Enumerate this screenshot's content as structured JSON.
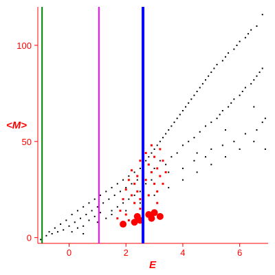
{
  "chart_data": {
    "type": "scatter",
    "xlabel": "E",
    "ylabel": "<M>",
    "xlim": [
      -1.1,
      7.0
    ],
    "ylim": [
      -3,
      120
    ],
    "x_ticks": [
      0,
      2,
      4,
      6
    ],
    "y_ticks": [
      0,
      50,
      100
    ],
    "x_tick_labels": [
      "0",
      "2",
      "4",
      "6"
    ],
    "y_tick_labels": [
      "0",
      "50",
      "100"
    ],
    "grid": false,
    "colors": {
      "background_points": "#000000",
      "highlight_points": "#ff0000",
      "line_green": "#008000",
      "line_magenta": "#ff00ff",
      "line_blue": "#0000ff",
      "axis": "#ff0000",
      "tick_labels": "#ff0000"
    },
    "vertical_lines": [
      {
        "x": -0.95,
        "color": "#008000"
      },
      {
        "x": 1.05,
        "color": "#ff00ff"
      },
      {
        "x": 2.6,
        "color": "#0000ff"
      }
    ],
    "series": [
      {
        "color": "#000000",
        "marker": "small-dot",
        "points": [
          [
            -1.0,
            -1
          ],
          [
            -0.8,
            1
          ],
          [
            -0.7,
            3
          ],
          [
            -0.6,
            2
          ],
          [
            -0.5,
            5
          ],
          [
            -0.4,
            3
          ],
          [
            -0.3,
            7
          ],
          [
            -0.2,
            4
          ],
          [
            -0.1,
            9
          ],
          [
            0.0,
            6
          ],
          [
            0.1,
            12
          ],
          [
            0.1,
            3
          ],
          [
            0.2,
            8
          ],
          [
            0.3,
            14
          ],
          [
            0.3,
            5
          ],
          [
            0.4,
            10
          ],
          [
            0.5,
            16
          ],
          [
            0.5,
            6
          ],
          [
            0.6,
            12
          ],
          [
            0.7,
            18
          ],
          [
            0.7,
            9
          ],
          [
            0.8,
            14
          ],
          [
            0.9,
            20
          ],
          [
            0.9,
            11
          ],
          [
            1.0,
            16
          ],
          [
            1.1,
            22
          ],
          [
            1.1,
            13
          ],
          [
            1.2,
            18
          ],
          [
            1.3,
            24
          ],
          [
            1.3,
            10
          ],
          [
            1.4,
            20
          ],
          [
            1.5,
            26
          ],
          [
            1.5,
            14
          ],
          [
            1.6,
            22
          ],
          [
            1.7,
            28
          ],
          [
            1.7,
            16
          ],
          [
            1.8,
            24
          ],
          [
            1.9,
            30
          ],
          [
            1.9,
            18
          ],
          [
            2.0,
            26
          ],
          [
            2.1,
            32
          ],
          [
            2.1,
            20
          ],
          [
            2.2,
            28
          ],
          [
            2.3,
            34
          ],
          [
            2.3,
            22
          ],
          [
            2.4,
            30
          ],
          [
            2.5,
            36
          ],
          [
            2.5,
            24
          ],
          [
            2.6,
            38
          ],
          [
            2.7,
            40
          ],
          [
            2.7,
            28
          ],
          [
            2.8,
            42
          ],
          [
            2.9,
            44
          ],
          [
            2.9,
            30
          ],
          [
            3.0,
            46
          ],
          [
            3.0,
            36
          ],
          [
            3.1,
            48
          ],
          [
            3.2,
            50
          ],
          [
            3.2,
            40
          ],
          [
            3.3,
            52
          ],
          [
            3.4,
            54
          ],
          [
            3.4,
            38
          ],
          [
            3.5,
            56
          ],
          [
            3.6,
            58
          ],
          [
            3.6,
            42
          ],
          [
            3.7,
            60
          ],
          [
            3.8,
            62
          ],
          [
            3.8,
            44
          ],
          [
            3.9,
            64
          ],
          [
            4.0,
            66
          ],
          [
            4.0,
            48
          ],
          [
            4.0,
            36
          ],
          [
            4.1,
            68
          ],
          [
            4.2,
            70
          ],
          [
            4.2,
            50
          ],
          [
            4.3,
            72
          ],
          [
            4.4,
            74
          ],
          [
            4.4,
            52
          ],
          [
            4.4,
            40
          ],
          [
            4.5,
            76
          ],
          [
            4.6,
            78
          ],
          [
            4.6,
            55
          ],
          [
            4.7,
            80
          ],
          [
            4.8,
            82
          ],
          [
            4.8,
            58
          ],
          [
            4.8,
            42
          ],
          [
            4.9,
            84
          ],
          [
            5.0,
            86
          ],
          [
            5.0,
            60
          ],
          [
            5.0,
            46
          ],
          [
            5.1,
            88
          ],
          [
            5.2,
            90
          ],
          [
            5.2,
            62
          ],
          [
            5.3,
            64
          ],
          [
            5.4,
            92
          ],
          [
            5.4,
            66
          ],
          [
            5.4,
            48
          ],
          [
            5.5,
            94
          ],
          [
            5.6,
            96
          ],
          [
            5.6,
            68
          ],
          [
            5.7,
            70
          ],
          [
            5.8,
            98
          ],
          [
            5.8,
            72
          ],
          [
            5.8,
            50
          ],
          [
            5.9,
            100
          ],
          [
            6.0,
            102
          ],
          [
            6.0,
            74
          ],
          [
            6.1,
            76
          ],
          [
            6.2,
            104
          ],
          [
            6.2,
            78
          ],
          [
            6.2,
            54
          ],
          [
            6.3,
            106
          ],
          [
            6.4,
            108
          ],
          [
            6.4,
            80
          ],
          [
            6.5,
            82
          ],
          [
            6.6,
            110
          ],
          [
            6.6,
            84
          ],
          [
            6.6,
            56
          ],
          [
            6.7,
            86
          ],
          [
            6.8,
            116
          ],
          [
            6.8,
            88
          ],
          [
            6.8,
            60
          ],
          [
            6.9,
            62
          ],
          [
            6.9,
            46
          ],
          [
            3.0,
            22
          ],
          [
            3.5,
            26
          ],
          [
            4.0,
            30
          ],
          [
            4.5,
            34
          ],
          [
            5.0,
            38
          ],
          [
            5.5,
            42
          ],
          [
            6.0,
            46
          ],
          [
            6.5,
            50
          ],
          [
            3.5,
            34
          ],
          [
            4.5,
            44
          ],
          [
            5.5,
            56
          ],
          [
            6.5,
            68
          ],
          [
            2.0,
            14
          ],
          [
            1.0,
            8
          ],
          [
            0.5,
            2
          ],
          [
            1.5,
            12
          ],
          [
            2.5,
            18
          ]
        ]
      },
      {
        "color": "#ff0000",
        "marker": "dot",
        "points": [
          [
            1.7,
            10
          ],
          [
            1.8,
            14
          ],
          [
            1.9,
            20
          ],
          [
            2.0,
            25
          ],
          [
            2.1,
            30
          ],
          [
            2.2,
            35
          ],
          [
            2.2,
            22
          ],
          [
            2.3,
            28
          ],
          [
            2.3,
            18
          ],
          [
            2.4,
            32
          ],
          [
            2.4,
            24
          ],
          [
            2.5,
            40
          ],
          [
            2.5,
            20
          ],
          [
            2.6,
            36
          ],
          [
            2.6,
            26
          ],
          [
            2.7,
            44
          ],
          [
            2.7,
            30
          ],
          [
            2.8,
            38
          ],
          [
            2.8,
            22
          ],
          [
            2.9,
            48
          ],
          [
            2.9,
            34
          ],
          [
            3.0,
            42
          ],
          [
            3.0,
            28
          ],
          [
            3.1,
            36
          ],
          [
            3.1,
            24
          ],
          [
            3.2,
            46
          ],
          [
            3.2,
            32
          ],
          [
            3.3,
            40
          ],
          [
            3.3,
            28
          ],
          [
            3.4,
            34
          ],
          [
            2.0,
            12
          ],
          [
            2.1,
            9
          ],
          [
            2.4,
            12
          ],
          [
            2.5,
            15
          ],
          [
            3.0,
            14
          ],
          [
            3.1,
            18
          ]
        ]
      },
      {
        "color": "#ff0000",
        "marker": "large-dot",
        "points": [
          [
            2.3,
            8
          ],
          [
            2.4,
            11
          ],
          [
            2.5,
            9
          ],
          [
            2.8,
            12
          ],
          [
            2.9,
            10
          ],
          [
            3.0,
            13
          ],
          [
            3.2,
            11
          ],
          [
            1.9,
            7
          ]
        ]
      }
    ]
  }
}
